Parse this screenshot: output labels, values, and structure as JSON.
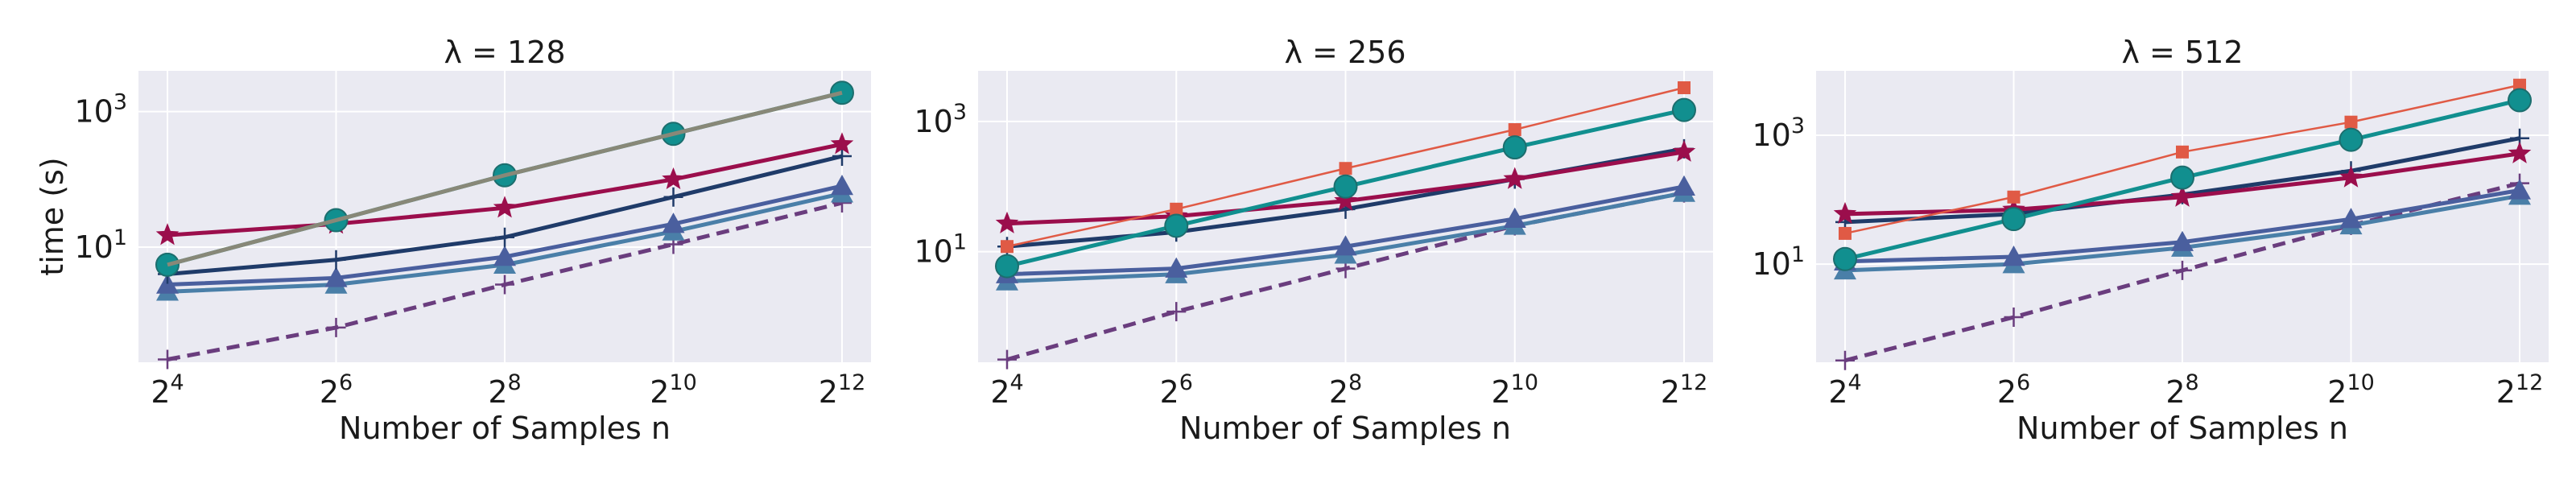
{
  "figure": {
    "background": "#ffffff",
    "plot_background": "#eaeaf2",
    "grid_color": "#ffffff"
  },
  "chart_data": [
    {
      "type": "line",
      "title": "λ = 128",
      "xlabel": "Number of Samples n",
      "ylabel": "time (s)",
      "xscale": "log2",
      "yscale": "log10",
      "x": [
        16,
        64,
        256,
        1024,
        4096
      ],
      "x_tick_labels": [
        "2^4",
        "2^6",
        "2^8",
        "2^10",
        "2^12"
      ],
      "y_tick_labels": [
        "10^1",
        "10^3"
      ],
      "ylim": [
        0.2,
        4000
      ],
      "grid": true,
      "series": [
        {
          "values": [
            0.22,
            0.65,
            2.8,
            11,
            45
          ],
          "color": "#6a3d7e",
          "marker": "plus",
          "dashed": true
        },
        {
          "values": [
            2.2,
            2.8,
            5.5,
            17,
            62
          ],
          "color": "#4a7fa8",
          "marker": "triangle",
          "dashed": false
        },
        {
          "values": [
            2.8,
            3.5,
            7.2,
            22,
            80
          ],
          "color": "#4a5f9e",
          "marker": "triangle",
          "dashed": false
        },
        {
          "values": [
            4.0,
            6.5,
            14,
            55,
            220
          ],
          "color": "#1f3b69",
          "marker": "plus",
          "dashed": false
        },
        {
          "values": [
            15,
            22,
            38,
            100,
            330
          ],
          "color": "#9b0e4c",
          "marker": "star",
          "dashed": false
        },
        {
          "values": [
            5.5,
            25,
            115,
            470,
            1900
          ],
          "color": "#e05a45",
          "marker": "square",
          "dashed": false
        },
        {
          "values": [
            5.5,
            25,
            115,
            470,
            1900
          ],
          "color": "#118f8f",
          "marker": "circle",
          "dashed": false
        },
        {
          "values": [
            5.5,
            25,
            115,
            470,
            1900
          ],
          "color": "#888878",
          "marker": "none",
          "dashed": false
        }
      ]
    },
    {
      "type": "line",
      "title": "λ = 256",
      "xlabel": "Number of Samples n",
      "ylabel": "",
      "xscale": "log2",
      "yscale": "log10",
      "x": [
        16,
        64,
        256,
        1024,
        4096
      ],
      "x_tick_labels": [
        "2^4",
        "2^6",
        "2^8",
        "2^10",
        "2^12"
      ],
      "y_tick_labels": [
        "10^1",
        "10^3"
      ],
      "ylim": [
        0.2,
        6000
      ],
      "grid": true,
      "series": [
        {
          "values": [
            0.22,
            1.2,
            5.5,
            25,
            80
          ],
          "color": "#6a3d7e",
          "marker": "plus",
          "dashed": true
        },
        {
          "values": [
            3.5,
            4.5,
            9,
            25,
            80
          ],
          "color": "#4a7fa8",
          "marker": "triangle",
          "dashed": false
        },
        {
          "values": [
            4.5,
            5.5,
            12,
            32,
            100
          ],
          "color": "#4a5f9e",
          "marker": "triangle",
          "dashed": false
        },
        {
          "values": [
            12,
            20,
            45,
            130,
            380
          ],
          "color": "#1f3b69",
          "marker": "plus",
          "dashed": false
        },
        {
          "values": [
            27,
            35,
            60,
            130,
            340
          ],
          "color": "#9b0e4c",
          "marker": "star",
          "dashed": false
        },
        {
          "values": [
            12,
            45,
            190,
            750,
            3300
          ],
          "color": "#e05a45",
          "marker": "square",
          "dashed": false
        },
        {
          "values": [
            6,
            25,
            100,
            400,
            1500
          ],
          "color": "#118f8f",
          "marker": "circle",
          "dashed": false
        }
      ]
    },
    {
      "type": "line",
      "title": "λ = 512",
      "xlabel": "Number of Samples n",
      "ylabel": "",
      "xscale": "log2",
      "yscale": "log10",
      "x": [
        16,
        64,
        256,
        1024,
        4096
      ],
      "x_tick_labels": [
        "2^4",
        "2^6",
        "2^8",
        "2^10",
        "2^12"
      ],
      "y_tick_labels": [
        "10^1",
        "10^3"
      ],
      "ylim": [
        0.3,
        10000
      ],
      "grid": true,
      "series": [
        {
          "values": [
            0.32,
            1.5,
            8,
            40,
            180
          ],
          "color": "#6a3d7e",
          "marker": "plus",
          "dashed": true
        },
        {
          "values": [
            8,
            10,
            18,
            40,
            115
          ],
          "color": "#4a7fa8",
          "marker": "triangle",
          "dashed": false
        },
        {
          "values": [
            11,
            13,
            22,
            50,
            140
          ],
          "color": "#4a5f9e",
          "marker": "triangle",
          "dashed": false
        },
        {
          "values": [
            45,
            60,
            120,
            280,
            900
          ],
          "color": "#1f3b69",
          "marker": "plus",
          "dashed": false
        },
        {
          "values": [
            60,
            70,
            110,
            220,
            520
          ],
          "color": "#9b0e4c",
          "marker": "star",
          "dashed": false
        },
        {
          "values": [
            30,
            110,
            550,
            1600,
            6000
          ],
          "color": "#e05a45",
          "marker": "square",
          "dashed": false
        },
        {
          "values": [
            12,
            50,
            220,
            850,
            3500
          ],
          "color": "#118f8f",
          "marker": "circle",
          "dashed": false
        }
      ]
    }
  ]
}
